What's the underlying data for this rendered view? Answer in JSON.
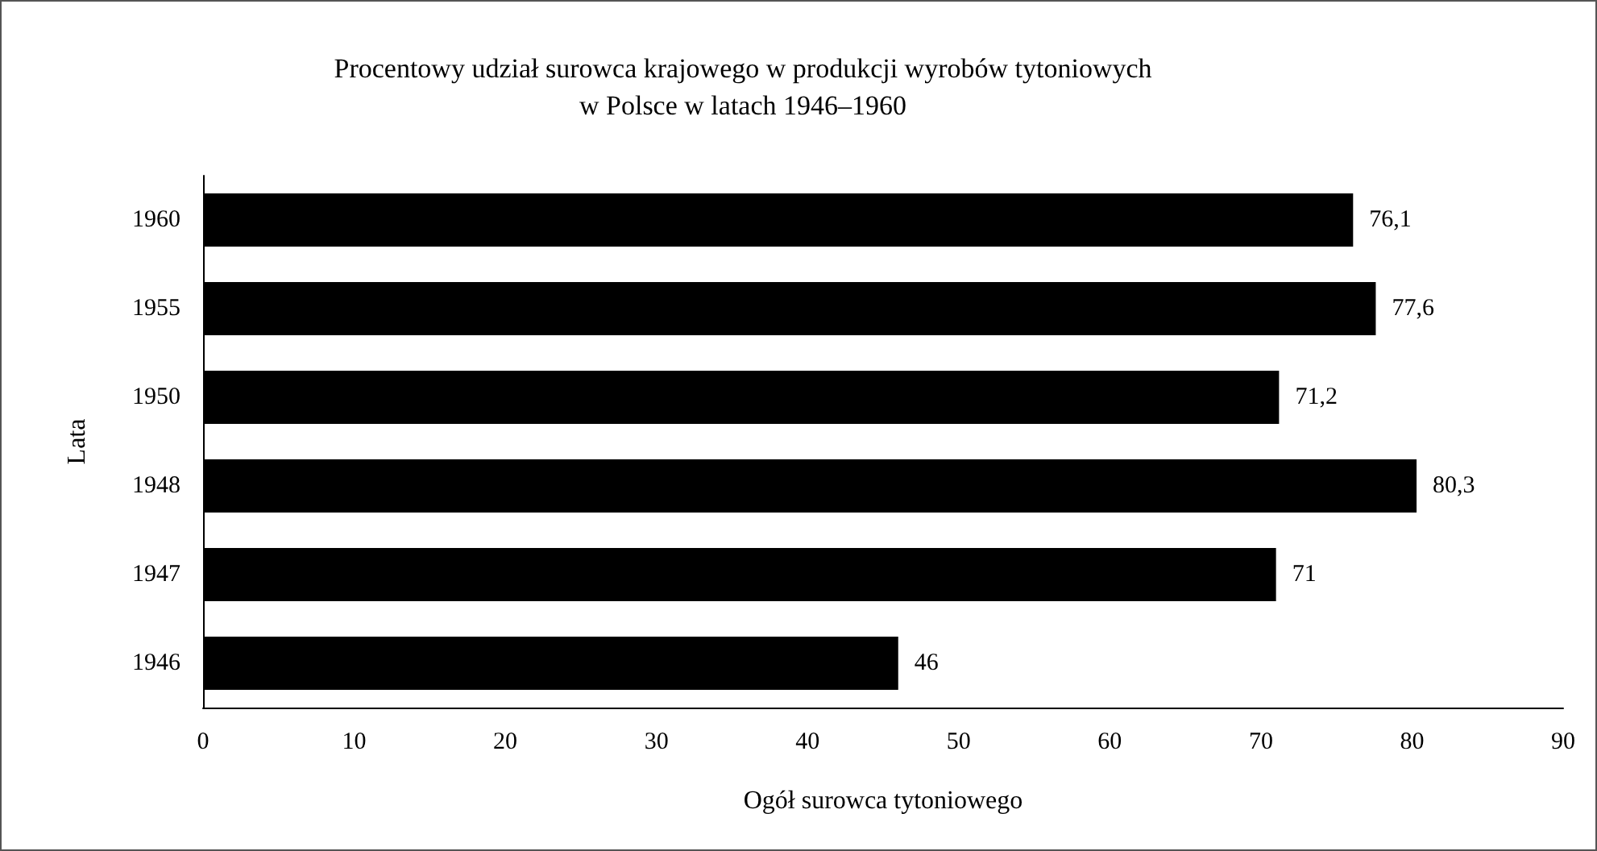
{
  "chart_data": {
    "type": "bar",
    "orientation": "horizontal",
    "title": "Procentowy udział surowca krajowego w produkcji wyrobów tytoniowych\nw Polsce w latach 1946–1960",
    "xlabel": "Ogół surowca tytoniowego",
    "ylabel": "Lata",
    "categories": [
      "1960",
      "1955",
      "1950",
      "1948",
      "1947",
      "1946"
    ],
    "values": [
      76.1,
      77.6,
      71.2,
      80.3,
      71,
      46
    ],
    "value_labels": [
      "76,1",
      "77,6",
      "71,2",
      "80,3",
      "71",
      "46"
    ],
    "color": "#000000",
    "xlim": [
      0,
      90
    ],
    "xticks": [
      0,
      10,
      20,
      30,
      40,
      50,
      60,
      70,
      80,
      90
    ],
    "grid": false
  }
}
